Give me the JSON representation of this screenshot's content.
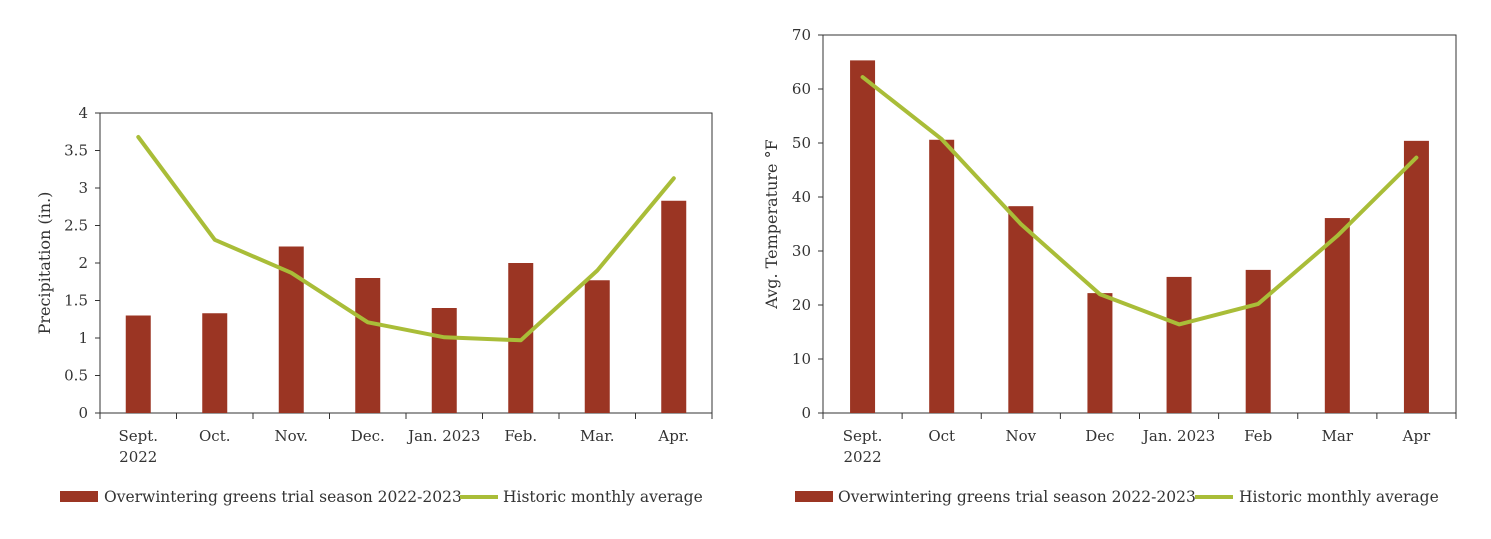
{
  "colors": {
    "bar": "#9b3523",
    "line": "#a9bd38",
    "axis": "#333333"
  },
  "chart_data": [
    {
      "type": "bar",
      "categories": [
        "Sept. 2022",
        "Oct.",
        "Nov.",
        "Dec.",
        "Jan. 2023",
        "Feb.",
        "Mar.",
        "Apr."
      ],
      "category_lines": [
        [
          "Sept.",
          "2022"
        ],
        [
          "Oct."
        ],
        [
          "Nov."
        ],
        [
          "Dec."
        ],
        [
          "Jan. 2023"
        ],
        [
          "Feb."
        ],
        [
          "Mar."
        ],
        [
          "Apr."
        ]
      ],
      "series": [
        {
          "name": "Overwintering greens trial season 2022-2023",
          "type": "bar",
          "values": [
            1.3,
            1.33,
            2.22,
            1.8,
            1.4,
            2.0,
            1.77,
            2.83
          ]
        },
        {
          "name": "Historic monthly average",
          "type": "line",
          "values": [
            3.68,
            2.31,
            1.87,
            1.21,
            1.01,
            0.97,
            1.9,
            3.13
          ]
        }
      ],
      "ylabel": "Precipitation (in.)",
      "xlabel": "",
      "ylim": [
        0,
        4
      ],
      "yticks": [
        "0",
        "0.5",
        "1",
        "1.5",
        "2",
        "2.5",
        "3",
        "3.5",
        "4"
      ],
      "legend": "bottom",
      "grid": false
    },
    {
      "type": "bar",
      "categories": [
        "Sept. 2022",
        "Oct",
        "Nov",
        "Dec",
        "Jan. 2023",
        "Feb",
        "Mar",
        "Apr"
      ],
      "category_lines": [
        [
          "Sept.",
          "2022"
        ],
        [
          "Oct"
        ],
        [
          "Nov"
        ],
        [
          "Dec"
        ],
        [
          "Jan. 2023"
        ],
        [
          "Feb"
        ],
        [
          "Mar"
        ],
        [
          "Apr"
        ]
      ],
      "series": [
        {
          "name": "Overwintering greens trial season 2022-2023",
          "type": "bar",
          "values": [
            65.3,
            50.6,
            38.3,
            22.2,
            25.2,
            26.5,
            36.1,
            50.4
          ]
        },
        {
          "name": "Historic monthly average",
          "type": "line",
          "values": [
            62.2,
            50.7,
            35.0,
            22.0,
            16.4,
            20.2,
            32.8,
            47.3
          ]
        }
      ],
      "ylabel": "Avg. Temperature °F",
      "xlabel": "",
      "ylim": [
        0,
        70
      ],
      "yticks": [
        "0",
        "10",
        "20",
        "30",
        "40",
        "50",
        "60",
        "70"
      ],
      "legend": "bottom",
      "grid": false
    }
  ]
}
